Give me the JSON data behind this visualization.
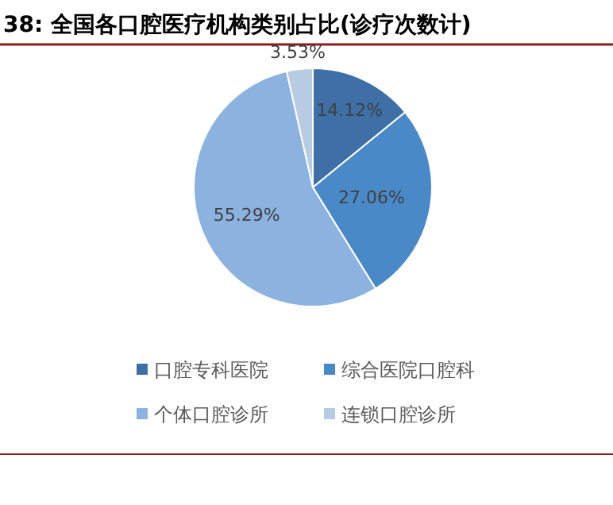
{
  "chart_data": {
    "type": "pie",
    "title": "38: 全国各口腔医疗机构类别占比(诊疗次数计)",
    "categories": [
      "口腔专科医院",
      "综合医院口腔科",
      "个体口腔诊所",
      "连锁口腔诊所"
    ],
    "values": [
      14.12,
      27.06,
      55.29,
      3.53
    ],
    "colors": [
      "#3e6fa6",
      "#4a89c8",
      "#8cb3e0",
      "#b7cbe3"
    ],
    "value_labels": [
      "14.12%",
      "27.06%",
      "55.29%",
      "3.53%"
    ],
    "legend": "bottom"
  }
}
